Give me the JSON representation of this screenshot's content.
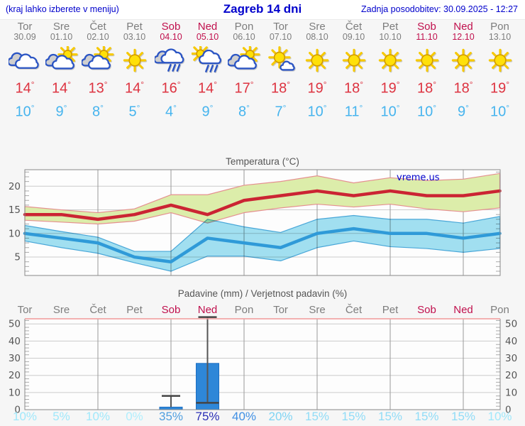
{
  "header": {
    "menu_hint": "(kraj lahko izberete v meniju)",
    "title": "Zagreb 14 dni",
    "last_update": "Zadnja posodobitev: 30.09.2025 - 12:27"
  },
  "colors": {
    "header_text": "#0000cc",
    "weekday_text": "#7d7d7d",
    "weekend_text": "#c0104d",
    "tmax_text": "#dd3340",
    "tmin_text": "#46b4ee",
    "watermark": "#0000cc"
  },
  "forecast": {
    "days": [
      {
        "name": "Tor",
        "date": "30.09",
        "weekend": false,
        "icon": "cloudy",
        "tmax": "14",
        "tmin": "10",
        "precip_prob": "10%",
        "prob_color": "#a0e8fb"
      },
      {
        "name": "Sre",
        "date": "01.10",
        "weekend": false,
        "icon": "partly-cloudy",
        "tmax": "14",
        "tmin": "9",
        "precip_prob": "5%",
        "prob_color": "#a0e8fb"
      },
      {
        "name": "Čet",
        "date": "02.10",
        "weekend": false,
        "icon": "partly-cloudy",
        "tmax": "13",
        "tmin": "8",
        "precip_prob": "10%",
        "prob_color": "#a0e8fb"
      },
      {
        "name": "Pet",
        "date": "03.10",
        "weekend": false,
        "icon": "sunny",
        "tmax": "14",
        "tmin": "5",
        "precip_prob": "0%",
        "prob_color": "#b0eefd"
      },
      {
        "name": "Sob",
        "date": "04.10",
        "weekend": true,
        "icon": "rain",
        "tmax": "16",
        "tmin": "4",
        "precip_prob": "35%",
        "prob_color": "#509fdf"
      },
      {
        "name": "Ned",
        "date": "05.10",
        "weekend": true,
        "icon": "sun-rain",
        "tmax": "14",
        "tmin": "9",
        "precip_prob": "75%",
        "prob_color": "#2b2eb5"
      },
      {
        "name": "Pon",
        "date": "06.10",
        "weekend": false,
        "icon": "partly-cloudy",
        "tmax": "17",
        "tmin": "8",
        "precip_prob": "40%",
        "prob_color": "#4090e4"
      },
      {
        "name": "Tor",
        "date": "07.10",
        "weekend": false,
        "icon": "mostly-sunny",
        "tmax": "18",
        "tmin": "7",
        "precip_prob": "20%",
        "prob_color": "#7fd4f4"
      },
      {
        "name": "Sre",
        "date": "08.10",
        "weekend": false,
        "icon": "sunny",
        "tmax": "19",
        "tmin": "10",
        "precip_prob": "15%",
        "prob_color": "#90dcf7"
      },
      {
        "name": "Čet",
        "date": "09.10",
        "weekend": false,
        "icon": "sunny",
        "tmax": "18",
        "tmin": "11",
        "precip_prob": "15%",
        "prob_color": "#90dcf7"
      },
      {
        "name": "Pet",
        "date": "10.10",
        "weekend": false,
        "icon": "sunny",
        "tmax": "19",
        "tmin": "10",
        "precip_prob": "15%",
        "prob_color": "#90dcf7"
      },
      {
        "name": "Sob",
        "date": "11.10",
        "weekend": true,
        "icon": "sunny",
        "tmax": "18",
        "tmin": "10",
        "precip_prob": "15%",
        "prob_color": "#90dcf7"
      },
      {
        "name": "Ned",
        "date": "12.10",
        "weekend": true,
        "icon": "sunny",
        "tmax": "18",
        "tmin": "9",
        "precip_prob": "15%",
        "prob_color": "#90dcf7"
      },
      {
        "name": "Pon",
        "date": "13.10",
        "weekend": false,
        "icon": "sunny",
        "tmax": "19",
        "tmin": "10",
        "precip_prob": "10%",
        "prob_color": "#a0e8fb"
      }
    ]
  },
  "chart_data": [
    {
      "type": "line",
      "title": "Temperatura (°C)",
      "watermark": "vreme.us",
      "categories": [
        "Tor 30.09",
        "Sre 01.10",
        "Čet 02.10",
        "Pet 03.10",
        "Sob 04.10",
        "Ned 05.10",
        "Pon 06.10",
        "Tor 07.10",
        "Sre 08.10",
        "Čet 09.10",
        "Pet 10.10",
        "Sob 11.10",
        "Ned 12.10",
        "Pon 13.10"
      ],
      "ylim": [
        1.1,
        23.5
      ],
      "yticks": [
        5,
        10,
        15,
        20
      ],
      "grid": true,
      "series": [
        {
          "name": "max-temp",
          "color": "#cb2433",
          "values": [
            14,
            14,
            13,
            14,
            16,
            14,
            17,
            18,
            19,
            18,
            19,
            18,
            18,
            19
          ]
        },
        {
          "name": "min-temp",
          "color": "#2f9ad8",
          "values": [
            10,
            9,
            8,
            5,
            4,
            9,
            8,
            7,
            10,
            11,
            10,
            10,
            9,
            10
          ]
        },
        {
          "name": "max-band-upper",
          "color": "#dcedaa",
          "values": [
            15.7,
            15.0,
            14.4,
            15.2,
            18.2,
            18.2,
            20.2,
            21.0,
            22.2,
            20.7,
            21.8,
            21.2,
            21.5,
            22.7
          ]
        },
        {
          "name": "max-band-lower",
          "color": "#dcedaa",
          "values": [
            12.8,
            12.4,
            12.0,
            12.6,
            14.4,
            12.2,
            14.4,
            15.4,
            16.2,
            15.6,
            16.2,
            15.2,
            14.6,
            15.4
          ]
        },
        {
          "name": "min-band-upper",
          "color": "#a2e1f2",
          "values": [
            11.7,
            10.4,
            9.2,
            6.2,
            6.2,
            13.0,
            11.4,
            10.2,
            13.0,
            13.8,
            13.0,
            13.0,
            12.2,
            13.6
          ]
        },
        {
          "name": "min-band-lower",
          "color": "#a2e1f2",
          "values": [
            8.4,
            7.0,
            5.8,
            3.8,
            2.0,
            5.2,
            5.2,
            4.2,
            7.0,
            8.4,
            7.2,
            6.8,
            6.0,
            6.8
          ]
        }
      ]
    },
    {
      "type": "bar",
      "title": "Padavine (mm) / Verjetnost padavin (%)",
      "categories": [
        "Tor",
        "Sre",
        "Čet",
        "Pet",
        "Sob",
        "Ned",
        "Pon",
        "Tor",
        "Sre",
        "Čet",
        "Pet",
        "Sob",
        "Ned",
        "Pon"
      ],
      "weekend_flags": [
        false,
        false,
        false,
        false,
        true,
        true,
        false,
        false,
        false,
        false,
        false,
        true,
        true,
        false
      ],
      "values": [
        0,
        0,
        0,
        0,
        1.5,
        27,
        0,
        0,
        0,
        0,
        0,
        0,
        0,
        0
      ],
      "whisker_low": [
        null,
        null,
        null,
        null,
        1.5,
        4,
        null,
        null,
        null,
        null,
        null,
        null,
        null,
        null
      ],
      "whisker_high": [
        null,
        null,
        null,
        null,
        8,
        54,
        null,
        null,
        null,
        null,
        null,
        null,
        null,
        null
      ],
      "probabilities": [
        "10%",
        "5%",
        "10%",
        "0%",
        "35%",
        "75%",
        "40%",
        "20%",
        "15%",
        "15%",
        "15%",
        "15%",
        "15%",
        "10%"
      ],
      "ylim": [
        0,
        53
      ],
      "yticks": [
        0,
        10,
        20,
        30,
        40,
        50
      ],
      "bar_color": "#2e87d8",
      "grid": true
    }
  ]
}
